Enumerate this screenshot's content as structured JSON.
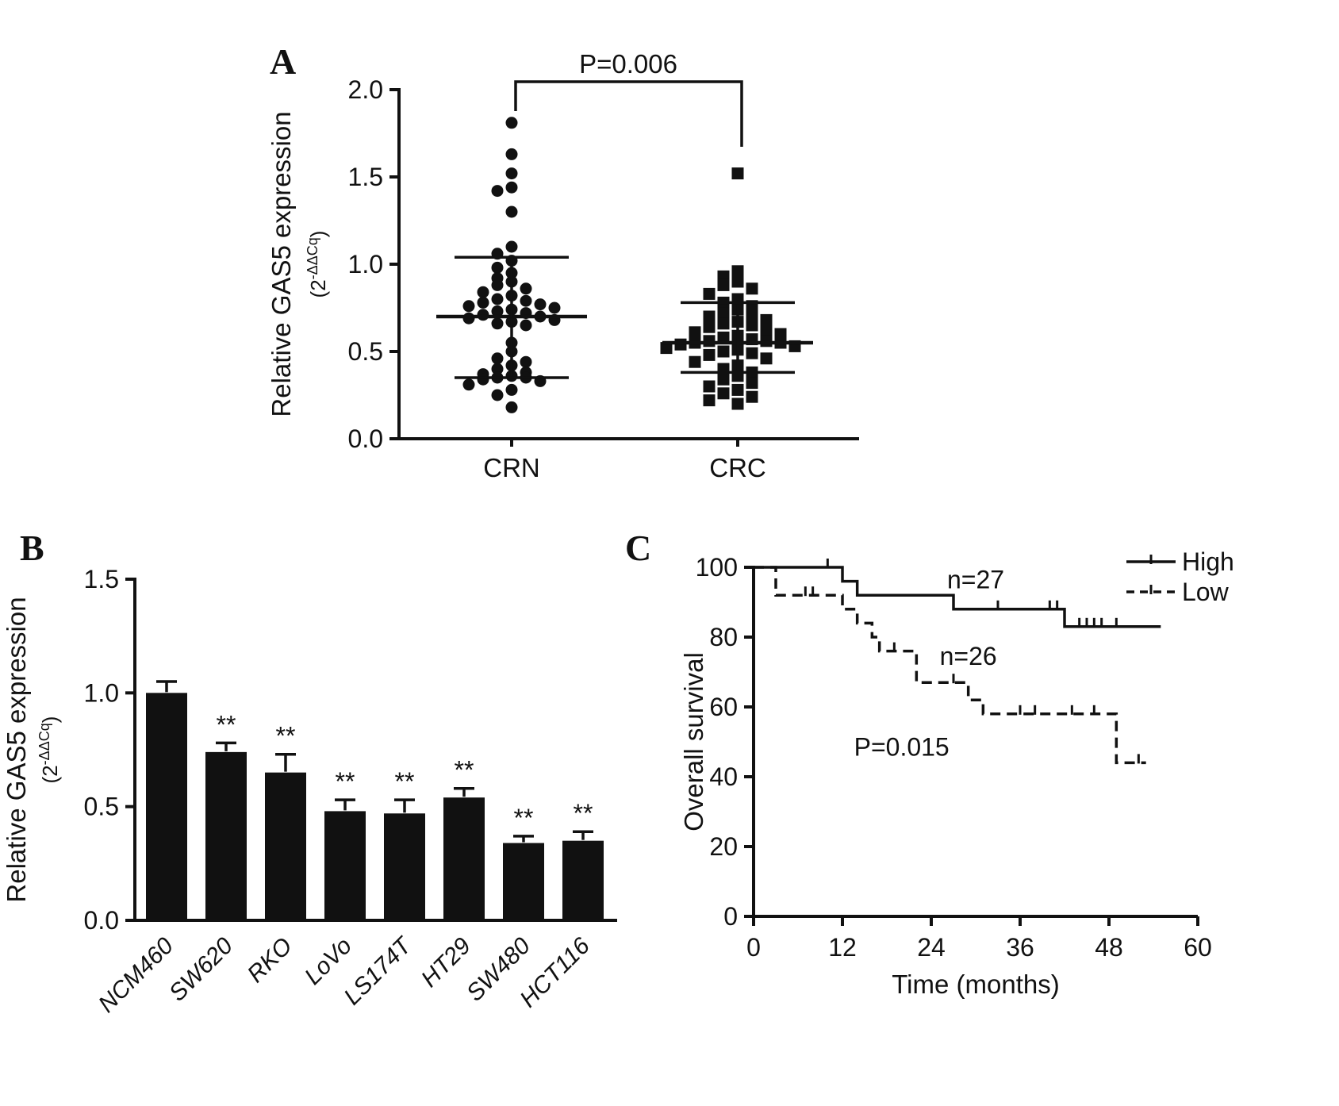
{
  "figure": {
    "background": "#ffffff",
    "ink": "#111111"
  },
  "panels": [
    {
      "label": "A"
    },
    {
      "label": "B"
    },
    {
      "label": "C"
    }
  ],
  "chart_data": [
    {
      "type": "scatter",
      "panel": "A",
      "ylabel": "Relative GAS5 expression",
      "ylabel_sub_base": "(2",
      "ylabel_sub_sup": "-ΔΔCq",
      "ylabel_sub_end": ")",
      "ylim": [
        0,
        2
      ],
      "yticks": [
        0,
        0.5,
        1,
        1.5,
        2
      ],
      "ytick_labels": [
        "0.0",
        "0.5",
        "1.0",
        "1.5",
        "2.0"
      ],
      "annotation": "P=0.006",
      "categories": [
        "CRN",
        "CRC"
      ],
      "groups": [
        {
          "name": "CRN",
          "marker": "circle",
          "mean": 0.7,
          "sd_low": 0.35,
          "sd_high": 1.04,
          "values": [
            1.81,
            1.63,
            1.52,
            1.44,
            1.42,
            1.3,
            1.1,
            1.06,
            1.02,
            0.98,
            0.95,
            0.92,
            0.9,
            0.88,
            0.86,
            0.84,
            0.82,
            0.8,
            0.79,
            0.78,
            0.77,
            0.76,
            0.75,
            0.74,
            0.73,
            0.72,
            0.71,
            0.7,
            0.69,
            0.68,
            0.67,
            0.66,
            0.65,
            0.55,
            0.5,
            0.46,
            0.44,
            0.42,
            0.4,
            0.38,
            0.37,
            0.36,
            0.35,
            0.35,
            0.34,
            0.33,
            0.31,
            0.28,
            0.25,
            0.18
          ]
        },
        {
          "name": "CRC",
          "marker": "square",
          "mean": 0.55,
          "sd_low": 0.38,
          "sd_high": 0.78,
          "values": [
            1.52,
            0.96,
            0.93,
            0.9,
            0.88,
            0.86,
            0.83,
            0.8,
            0.78,
            0.76,
            0.74,
            0.72,
            0.71,
            0.7,
            0.68,
            0.67,
            0.66,
            0.65,
            0.64,
            0.62,
            0.61,
            0.6,
            0.59,
            0.58,
            0.57,
            0.56,
            0.56,
            0.55,
            0.55,
            0.54,
            0.53,
            0.52,
            0.51,
            0.5,
            0.49,
            0.48,
            0.46,
            0.44,
            0.42,
            0.4,
            0.38,
            0.36,
            0.34,
            0.32,
            0.3,
            0.28,
            0.26,
            0.24,
            0.22,
            0.2
          ]
        }
      ]
    },
    {
      "type": "bar",
      "panel": "B",
      "ylabel": "Relative GAS5 expression",
      "ylabel_sub_base": "(2",
      "ylabel_sub_sup": "-ΔΔCq",
      "ylabel_sub_end": ")",
      "categories": [
        "NCM460",
        "SW620",
        "RKO",
        "LoVo",
        "LS174T",
        "HT29",
        "SW480",
        "HCT116"
      ],
      "values": [
        1.0,
        0.74,
        0.65,
        0.48,
        0.47,
        0.54,
        0.34,
        0.35
      ],
      "errors": [
        0.05,
        0.04,
        0.08,
        0.05,
        0.06,
        0.04,
        0.03,
        0.04
      ],
      "significance": [
        "",
        "**",
        "**",
        "**",
        "**",
        "**",
        "**",
        "**"
      ],
      "ylim": [
        0,
        1.5
      ],
      "yticks": [
        0,
        0.5,
        1,
        1.5
      ],
      "ytick_labels": [
        "0.0",
        "0.5",
        "1.0",
        "1.5"
      ]
    },
    {
      "type": "line",
      "subtype": "kaplan-meier",
      "panel": "C",
      "xlabel": "Time (months)",
      "ylabel": "Overall survival",
      "xlim": [
        0,
        60
      ],
      "ylim": [
        0,
        100
      ],
      "xticks": [
        0,
        12,
        24,
        36,
        48,
        60
      ],
      "yticks": [
        0,
        20,
        40,
        60,
        80,
        100
      ],
      "annotation": "P=0.015",
      "legend": [
        "High",
        "Low"
      ],
      "series": [
        {
          "name": "High",
          "n_label": "n=27",
          "style": "solid",
          "events": [
            [
              0,
              100
            ],
            [
              12,
              96
            ],
            [
              14,
              92
            ],
            [
              27,
              88
            ],
            [
              42,
              83
            ]
          ],
          "end": 55,
          "censors": [
            [
              10,
              100
            ],
            [
              33,
              88
            ],
            [
              40,
              88
            ],
            [
              41,
              88
            ],
            [
              44,
              83
            ],
            [
              45,
              83
            ],
            [
              46,
              83
            ],
            [
              47,
              83
            ],
            [
              49,
              83
            ]
          ]
        },
        {
          "name": "Low",
          "n_label": "n=26",
          "style": "dashed",
          "events": [
            [
              0,
              100
            ],
            [
              3,
              92
            ],
            [
              12,
              88
            ],
            [
              14,
              84
            ],
            [
              16,
              80
            ],
            [
              17,
              76
            ],
            [
              22,
              67
            ],
            [
              29,
              62
            ],
            [
              31,
              58
            ],
            [
              49,
              44
            ]
          ],
          "end": 53,
          "censors": [
            [
              7,
              92
            ],
            [
              8,
              92
            ],
            [
              19,
              76
            ],
            [
              27,
              67
            ],
            [
              36,
              58
            ],
            [
              38,
              58
            ],
            [
              43,
              58
            ],
            [
              46,
              58
            ],
            [
              52,
              44
            ]
          ]
        }
      ]
    }
  ]
}
